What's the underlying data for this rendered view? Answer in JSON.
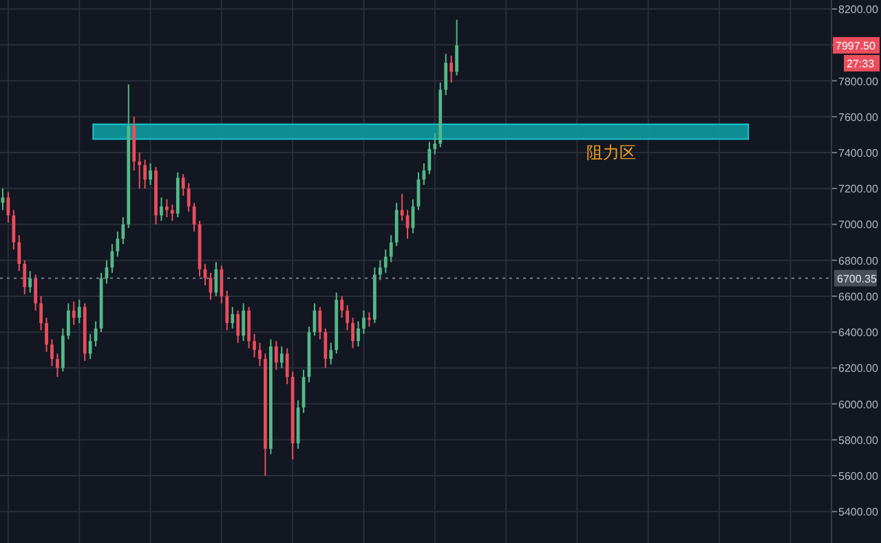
{
  "chart_data": {
    "type": "candlestick",
    "categories": [
      null,
      null,
      null,
      null,
      null,
      null,
      null,
      null,
      null,
      null,
      null,
      null,
      null,
      null,
      null,
      null,
      null,
      null,
      null,
      null,
      null,
      null,
      null,
      null,
      null,
      null,
      null,
      null,
      null,
      null,
      null,
      null,
      null,
      null,
      null,
      null,
      null,
      null,
      null,
      null,
      null,
      null,
      null,
      null,
      null,
      null,
      null,
      null,
      null,
      null,
      null,
      null,
      null,
      null,
      null,
      null,
      null,
      null,
      null,
      null,
      null,
      null,
      null,
      null,
      null,
      null,
      null,
      null,
      null,
      null,
      null,
      null,
      null,
      null,
      null,
      null,
      null,
      null,
      null,
      null,
      null,
      null,
      null,
      null,
      null,
      null,
      null,
      null,
      null,
      null,
      null,
      null,
      null,
      null,
      null,
      null,
      null,
      null,
      null,
      null,
      null,
      null,
      null,
      null,
      null,
      null,
      null,
      null,
      null,
      null,
      null,
      null,
      null,
      null,
      null,
      null,
      null,
      null,
      null,
      null,
      null,
      null,
      null,
      null,
      null,
      null,
      null,
      null,
      null,
      null,
      null,
      null,
      null,
      null,
      null,
      null,
      null,
      null,
      null,
      null,
      null,
      null,
      null,
      null,
      null,
      null,
      null,
      null,
      null,
      null,
      null,
      null
    ],
    "ohlc": [
      [
        7120,
        7200,
        7080,
        7150
      ],
      [
        7150,
        7180,
        7010,
        7050
      ],
      [
        7050,
        7080,
        6860,
        6900
      ],
      [
        6900,
        6940,
        6740,
        6780
      ],
      [
        6780,
        6800,
        6610,
        6650
      ],
      [
        6650,
        6740,
        6620,
        6700
      ],
      [
        6700,
        6720,
        6520,
        6560
      ],
      [
        6560,
        6600,
        6410,
        6450
      ],
      [
        6450,
        6480,
        6290,
        6330
      ],
      [
        6330,
        6360,
        6210,
        6250
      ],
      [
        6250,
        6280,
        6150,
        6200
      ],
      [
        6200,
        6420,
        6180,
        6380
      ],
      [
        6380,
        6560,
        6360,
        6520
      ],
      [
        6520,
        6570,
        6440,
        6480
      ],
      [
        6480,
        6580,
        6450,
        6540
      ],
      [
        6540,
        6560,
        6240,
        6280
      ],
      [
        6280,
        6390,
        6250,
        6350
      ],
      [
        6350,
        6460,
        6320,
        6420
      ],
      [
        6420,
        6730,
        6400,
        6700
      ],
      [
        6700,
        6800,
        6670,
        6760
      ],
      [
        6760,
        6890,
        6730,
        6850
      ],
      [
        6850,
        6960,
        6820,
        6920
      ],
      [
        6920,
        7040,
        6890,
        7000
      ],
      [
        7000,
        7780,
        6980,
        7550
      ],
      [
        7550,
        7600,
        7300,
        7350
      ],
      [
        7350,
        7400,
        7200,
        7330
      ],
      [
        7330,
        7360,
        7200,
        7250
      ],
      [
        7250,
        7340,
        7220,
        7300
      ],
      [
        7300,
        7320,
        7000,
        7050
      ],
      [
        7050,
        7150,
        7020,
        7100
      ],
      [
        7100,
        7140,
        7040,
        7080
      ],
      [
        7080,
        7110,
        7020,
        7060
      ],
      [
        7060,
        7290,
        7040,
        7260
      ],
      [
        7260,
        7280,
        7160,
        7200
      ],
      [
        7200,
        7230,
        7070,
        7100
      ],
      [
        7100,
        7120,
        6960,
        7000
      ],
      [
        7000,
        7020,
        6710,
        6750
      ],
      [
        6750,
        6780,
        6660,
        6700
      ],
      [
        6700,
        6730,
        6580,
        6620
      ],
      [
        6620,
        6790,
        6600,
        6750
      ],
      [
        6750,
        6770,
        6560,
        6600
      ],
      [
        6600,
        6630,
        6410,
        6450
      ],
      [
        6450,
        6540,
        6420,
        6500
      ],
      [
        6500,
        6520,
        6340,
        6380
      ],
      [
        6380,
        6560,
        6350,
        6520
      ],
      [
        6520,
        6540,
        6310,
        6350
      ],
      [
        6350,
        6390,
        6260,
        6300
      ],
      [
        6300,
        6340,
        6210,
        6250
      ],
      [
        6250,
        6280,
        5600,
        5750
      ],
      [
        5750,
        6360,
        5720,
        6320
      ],
      [
        6320,
        6350,
        6190,
        6230
      ],
      [
        6230,
        6320,
        6200,
        6280
      ],
      [
        6280,
        6310,
        6110,
        6150
      ],
      [
        6150,
        6180,
        5690,
        5780
      ],
      [
        5780,
        6020,
        5750,
        5980
      ],
      [
        5980,
        6190,
        5950,
        6150
      ],
      [
        6150,
        6430,
        6120,
        6400
      ],
      [
        6400,
        6560,
        6380,
        6520
      ],
      [
        6520,
        6540,
        6360,
        6400
      ],
      [
        6400,
        6420,
        6200,
        6250
      ],
      [
        6250,
        6340,
        6220,
        6300
      ],
      [
        6300,
        6620,
        6280,
        6580
      ],
      [
        6580,
        6600,
        6480,
        6520
      ],
      [
        6520,
        6550,
        6410,
        6450
      ],
      [
        6450,
        6480,
        6310,
        6350
      ],
      [
        6350,
        6460,
        6320,
        6420
      ],
      [
        6420,
        6520,
        6390,
        6480
      ],
      [
        6480,
        6510,
        6430,
        6470
      ],
      [
        6470,
        6760,
        6450,
        6720
      ],
      [
        6720,
        6800,
        6690,
        6760
      ],
      [
        6760,
        6860,
        6730,
        6820
      ],
      [
        6820,
        6940,
        6790,
        6900
      ],
      [
        6900,
        7120,
        6880,
        7080
      ],
      [
        7080,
        7170,
        7020,
        7050
      ],
      [
        7050,
        7080,
        6920,
        6980
      ],
      [
        6980,
        7140,
        6950,
        7100
      ],
      [
        7100,
        7290,
        7080,
        7250
      ],
      [
        7250,
        7340,
        7220,
        7300
      ],
      [
        7300,
        7460,
        7280,
        7420
      ],
      [
        7420,
        7510,
        7390,
        7450
      ],
      [
        7450,
        7790,
        7430,
        7750
      ],
      [
        7750,
        7950,
        7720,
        7900
      ],
      [
        7900,
        7940,
        7790,
        7850
      ],
      [
        7850,
        8140,
        7830,
        7997.5
      ],
      null,
      null,
      null,
      null,
      null,
      null,
      null,
      null,
      null,
      null,
      null,
      null,
      null,
      null,
      null,
      null,
      null,
      null,
      null,
      null,
      null,
      null,
      null,
      null,
      null,
      null,
      null,
      null,
      null,
      null,
      null,
      null,
      null,
      null,
      null,
      null,
      null,
      null,
      null,
      null,
      null,
      null,
      null,
      null,
      null,
      null,
      null,
      null,
      null,
      null,
      null,
      null,
      null,
      null,
      null,
      null,
      null,
      null,
      null,
      null,
      null,
      null,
      null,
      null,
      null,
      null,
      null,
      null
    ],
    "ylim": [
      5225,
      8250
    ],
    "yticks": [
      {
        "value": 5400,
        "label": "5400.00"
      },
      {
        "value": 5600,
        "label": "5600.00"
      },
      {
        "value": 5800,
        "label": "5800.00"
      },
      {
        "value": 6000,
        "label": "6000.00"
      },
      {
        "value": 6200,
        "label": "6200.00"
      },
      {
        "value": 6400,
        "label": "6400.00"
      },
      {
        "value": 6600,
        "label": "6600.00"
      },
      {
        "value": 6800,
        "label": "6800.00"
      },
      {
        "value": 7000,
        "label": "7000.00"
      },
      {
        "value": 7200,
        "label": "7200.00"
      },
      {
        "value": 7400,
        "label": "7400.00"
      },
      {
        "value": 7600,
        "label": "7600.00"
      },
      {
        "value": 7800,
        "label": "7800.00"
      },
      {
        "value": 8000,
        "label": null
      },
      {
        "value": 8200,
        "label": "8200.00"
      }
    ],
    "bands": [
      {
        "axis": "y",
        "from": 7475,
        "to": 7558,
        "label": "阻力区",
        "color": "#0e9aa0"
      }
    ],
    "ref_lines": [
      {
        "axis": "y",
        "value": 6700.35,
        "label": "6700.35",
        "color": "#787b86",
        "line_style": "dotted"
      }
    ],
    "annotations": [
      "7997.50",
      "27:33"
    ],
    "grid": true,
    "tick_labels": "y"
  }
}
